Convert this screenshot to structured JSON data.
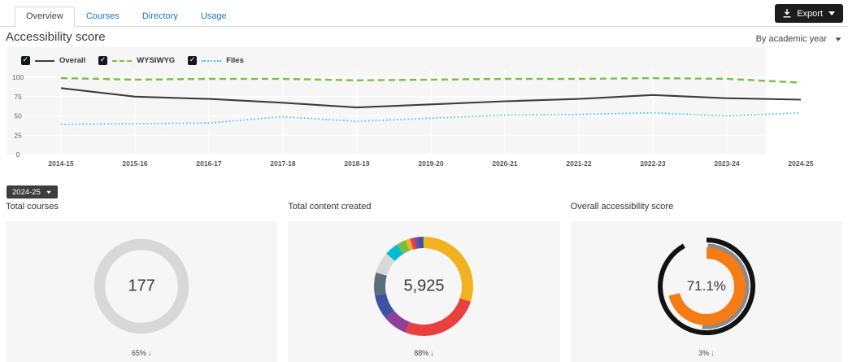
{
  "tabs": [
    {
      "label": "Overview",
      "active": true
    },
    {
      "label": "Courses",
      "active": false
    },
    {
      "label": "Directory",
      "active": false
    },
    {
      "label": "Usage",
      "active": false
    }
  ],
  "export_button": {
    "label": "Export"
  },
  "heading": "Accessibility score",
  "filter": {
    "label": "By academic year"
  },
  "year_button": {
    "label": "2024-25"
  },
  "colors": {
    "tab_link": "#2277c9",
    "export_bg": "#1c1c1c",
    "panel_bg": "#f6f6f6",
    "gridline": "#ffffff",
    "highlight_band": "#ffffff",
    "axis_text": "#666666"
  },
  "chart_data": {
    "type": "line",
    "x": [
      "2014-15",
      "2015-16",
      "2016-17",
      "2017-18",
      "2018-19",
      "2019-20",
      "2020-21",
      "2021-22",
      "2022-23",
      "2023-24",
      "2024-25"
    ],
    "series": [
      {
        "name": "Overall",
        "checked": true,
        "color": "#3d3d3d",
        "style": "solid",
        "width": 2.1,
        "values": [
          86,
          75,
          72,
          67,
          61,
          65,
          69,
          72,
          77,
          73,
          71
        ]
      },
      {
        "name": "WYSIWYG",
        "checked": true,
        "color": "#7dbf45",
        "style": "dashed",
        "width": 2.4,
        "values": [
          99,
          97,
          98,
          98,
          96,
          97,
          98,
          98,
          99,
          98,
          93
        ]
      },
      {
        "name": "Files",
        "checked": true,
        "color": "#39c3e6",
        "style": "dotted",
        "width": 1.7,
        "values": [
          39,
          40,
          41,
          49,
          43,
          47,
          51,
          52,
          54,
          50,
          54
        ]
      }
    ],
    "ylim": [
      0,
      100
    ],
    "yticks": [
      0,
      25,
      50,
      75,
      100
    ],
    "grid": true,
    "legend_position": "top-left",
    "highlight_band_last_period": true
  },
  "cards": [
    {
      "title": "Total courses",
      "value": "177",
      "trend": "65%",
      "arrow": "↓",
      "donut": {
        "type": "ring",
        "color": "#d8d8d8"
      }
    },
    {
      "title": "Total content created",
      "value": "5,925",
      "trend": "88%",
      "arrow": "↓",
      "donut": {
        "type": "pie",
        "segments": [
          {
            "color": "#f2b11f",
            "value": 30
          },
          {
            "color": "#e8403c",
            "value": 26
          },
          {
            "color": "#8e3f98",
            "value": 8
          },
          {
            "color": "#3f51a5",
            "value": 8
          },
          {
            "color": "#5c6e79",
            "value": 7.5
          },
          {
            "color": "#d8d8d8",
            "value": 7
          },
          {
            "color": "#00bcd4",
            "value": 4.5
          },
          {
            "color": "#77bc44",
            "value": 3
          },
          {
            "color": "#f2b11f",
            "value": 1.6
          },
          {
            "color": "#e8403c",
            "value": 1.2
          },
          {
            "color": "#8e3f98",
            "value": 1.2
          },
          {
            "color": "#3f51a5",
            "value": 2
          }
        ]
      }
    },
    {
      "title": "Overall accessibility score",
      "value": "71.1%",
      "trend": "3%",
      "arrow": "↓",
      "donut": {
        "type": "gauge",
        "arcs": [
          {
            "name": "track",
            "color": "#121212",
            "radius": 57,
            "width": 6,
            "from": 0,
            "to": 331
          },
          {
            "name": "previous",
            "color": "#8a8a8a",
            "radius": 50,
            "width": 5,
            "from": 2,
            "to": 186
          },
          {
            "name": "score",
            "color": "#f57b15",
            "radius": 41,
            "width": 14,
            "from": 0,
            "to": 256
          }
        ]
      }
    }
  ]
}
